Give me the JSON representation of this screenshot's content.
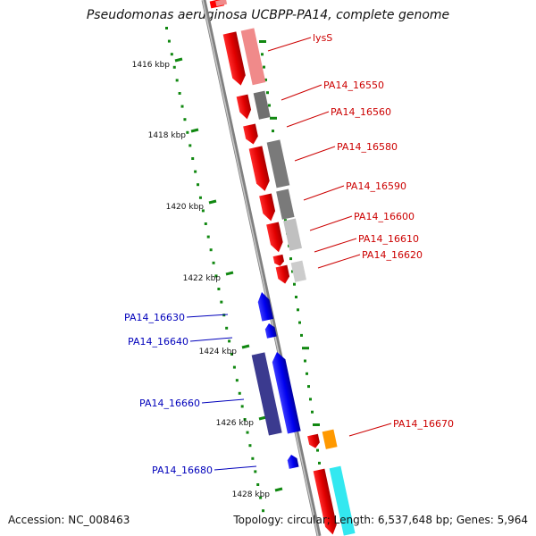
{
  "title": "Pseudomonas aeruginosa UCBPP-PA14, complete genome",
  "footer": {
    "accession": "Accession: NC_008463",
    "summary": "Topology: circular; Length: 6,537,648 bp; Genes: 5,964"
  },
  "colors": {
    "forward_gene": "#ff0000",
    "reverse_gene": "#0000ff",
    "forward_label": "#cc0000",
    "reverse_label": "#0000bb",
    "tick": "#118811",
    "backbone": "#808080"
  },
  "scale_ticks": [
    {
      "kbp": 1416,
      "label": "1416 kbp"
    },
    {
      "kbp": 1418,
      "label": "1418 kbp"
    },
    {
      "kbp": 1420,
      "label": "1420 kbp"
    },
    {
      "kbp": 1422,
      "label": "1422 kbp"
    },
    {
      "kbp": 1424,
      "label": "1424 kbp"
    },
    {
      "kbp": 1426,
      "label": "1426 kbp"
    },
    {
      "kbp": 1428,
      "label": "1428 kbp"
    }
  ],
  "gene_labels": [
    {
      "name": "lysS",
      "strand": "forward"
    },
    {
      "name": "PA14_16550",
      "strand": "forward"
    },
    {
      "name": "PA14_16560",
      "strand": "forward"
    },
    {
      "name": "PA14_16580",
      "strand": "forward"
    },
    {
      "name": "PA14_16590",
      "strand": "forward"
    },
    {
      "name": "PA14_16600",
      "strand": "forward"
    },
    {
      "name": "PA14_16610",
      "strand": "forward"
    },
    {
      "name": "PA14_16620",
      "strand": "forward"
    },
    {
      "name": "PA14_16630",
      "strand": "reverse"
    },
    {
      "name": "PA14_16640",
      "strand": "reverse"
    },
    {
      "name": "PA14_16660",
      "strand": "reverse"
    },
    {
      "name": "PA14_16670",
      "strand": "forward"
    },
    {
      "name": "PA14_16680",
      "strand": "reverse"
    }
  ]
}
